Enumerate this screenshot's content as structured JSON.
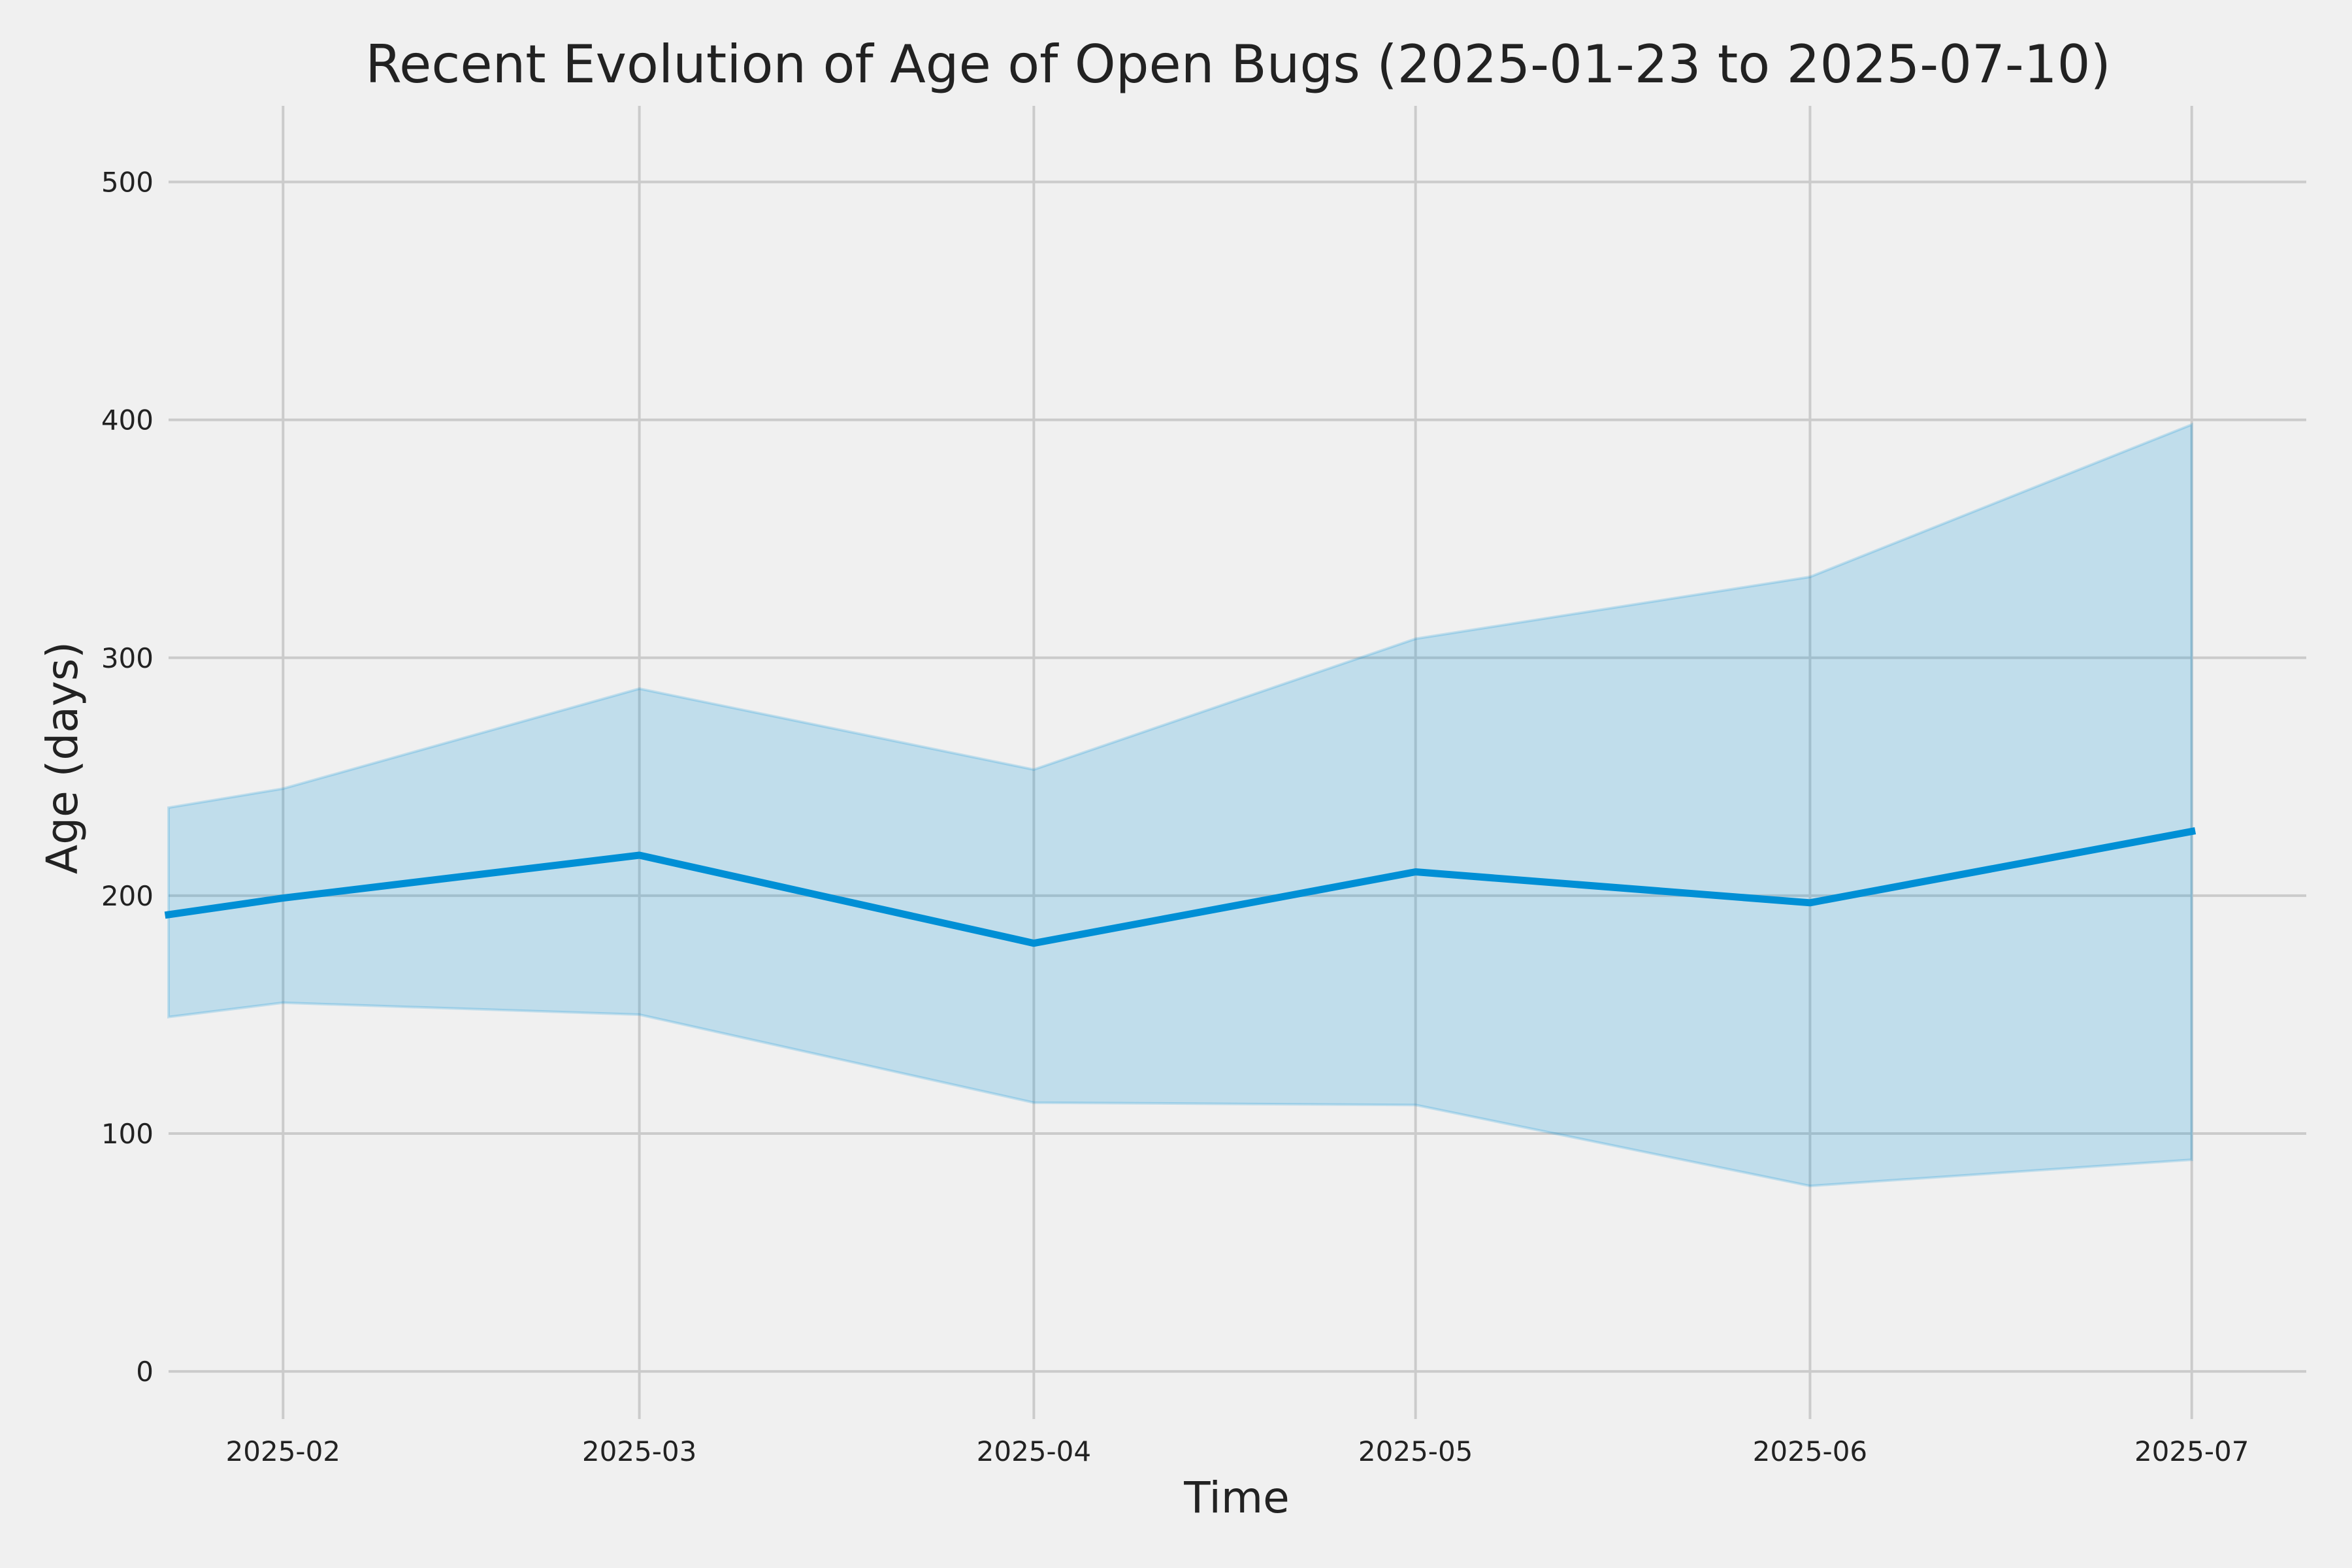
{
  "chart_data": {
    "type": "area",
    "title": "Recent Evolution of Age of Open Bugs (2025-01-23 to 2025-07-10)",
    "xlabel": "Time",
    "ylabel": "Age (days)",
    "x_ticks": [
      "2025-02",
      "2025-03",
      "2025-04",
      "2025-05",
      "2025-06",
      "2025-07"
    ],
    "y_ticks": [
      "0",
      "100",
      "200",
      "300",
      "400",
      "500"
    ],
    "xlim": [
      "2025-01-23",
      "2025-07-10"
    ],
    "ylim": [
      -20,
      532
    ],
    "grid": true,
    "x": [
      "2025-01-23",
      "2025-02-01",
      "2025-03-01",
      "2025-04-01",
      "2025-05-01",
      "2025-06-01",
      "2025-07-01"
    ],
    "series": [
      {
        "values": [
          192,
          199,
          217,
          180,
          210,
          197,
          227
        ],
        "upper": [
          237,
          245,
          287,
          253,
          308,
          334,
          398
        ],
        "lower": [
          149,
          155,
          150,
          113,
          112,
          78,
          89
        ]
      }
    ],
    "colors": {
      "line": "#008fd5",
      "band": "#008fd5",
      "background": "#f0f0f0",
      "grid": "#cbcbcb"
    }
  }
}
